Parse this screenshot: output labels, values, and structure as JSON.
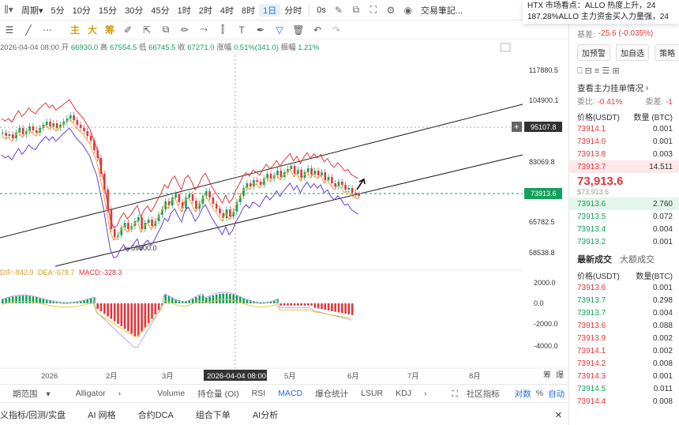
{
  "topbar": {
    "period_label": "周期",
    "timeframes": [
      "5分",
      "10分",
      "15分",
      "30分",
      "45分",
      "1时",
      "2时",
      "4时",
      "8时",
      "1日",
      "分时"
    ],
    "active_timeframe": "1日",
    "interval_0s": "0s",
    "journal_label": "交易筆記...",
    "more_label": "A"
  },
  "notice": {
    "line1": "HTX 市场看点：ALLO 热度上升，24",
    "line2": "187.28%ALLO 主力资金买入力量强，24"
  },
  "drawtools": [
    "主",
    "大",
    "筹"
  ],
  "infoline": {
    "date": "2026-04-04 08:00",
    "open_label": "开",
    "open": "66930.0",
    "high_label": "高",
    "high": "67554.5",
    "low_label": "低",
    "low": "66745.5",
    "close_label": "收",
    "close": "67271.0",
    "change_label": "涨幅",
    "change": "0.51%(341.0)",
    "amp_label": "振幅",
    "amp": "1.21%"
  },
  "yaxis": {
    "ticks": [
      "117880.5",
      "104900.1",
      "83069.8",
      "65782.5",
      "58538.8"
    ],
    "crosshair_value": "95107.8",
    "last_price": "73913.6",
    "low_marker": "59800.0"
  },
  "macd": {
    "dif_label": "DIF:-842.9",
    "dea_label": "DEA:-678.7",
    "macd_label": "MACD:-328.3",
    "ticks": [
      "2000.0",
      "0.0",
      "-2000.0",
      "-4000.0"
    ]
  },
  "xaxis": {
    "labels": [
      "2026",
      "2月",
      "3月",
      "5月",
      "6月",
      "7月",
      "8月"
    ],
    "crosshair_date": "2026-04-04 08:00",
    "corner1": "筹",
    "corner2": "爆"
  },
  "bottomtabs": {
    "range_label": "期范围",
    "items": [
      "Alligator",
      "Volume",
      "持仓量 (OI)",
      "RSI",
      "MACD",
      "爆仓统计",
      "LSUR",
      "KDJ"
    ],
    "active": "MACD",
    "community_label": "社区指标",
    "log_label": "对数",
    "pct_label": "%",
    "auto_label": "自动"
  },
  "bottombar2": {
    "items": [
      "义指标/回测/实盘",
      "AI 网格",
      "合约DCA",
      "组合下单",
      "AI分析"
    ]
  },
  "right": {
    "basis_label": "基差:",
    "basis_value": "-25.6 (-0.035%)",
    "buttons": [
      "加预警",
      "加自选",
      "策略"
    ],
    "depth_link": "查看主力挂单情况",
    "ratio_label": "委比:",
    "ratio_value": "-0.41%",
    "diff_label": "委差:",
    "diff_value": "-1",
    "header_price": "价格(USDT)",
    "header_qty": "数量 (BTC)",
    "asks": [
      {
        "price": "73914.1",
        "qty": "0.001"
      },
      {
        "price": "73914.0",
        "qty": "0.001"
      },
      {
        "price": "73913.8",
        "qty": "0.003"
      },
      {
        "price": "73913.7",
        "qty": "14.511"
      }
    ],
    "mid_price": "73,913.6",
    "mid_sub": "$73,913.6",
    "bids": [
      {
        "price": "73913.6",
        "qty": "2.760"
      },
      {
        "price": "73913.5",
        "qty": "0.072"
      },
      {
        "price": "73913.4",
        "qty": "0.004"
      },
      {
        "price": "73913.2",
        "qty": "0.001"
      }
    ],
    "trades_tab": "最新成交",
    "large_tab": "大额成交",
    "trades_header_price": "价格(USDT)",
    "trades_header_qty": "数量(BTC)",
    "trades": [
      {
        "price": "73913.6",
        "qty": "0.001",
        "side": "sell"
      },
      {
        "price": "73913.7",
        "qty": "0.298",
        "side": "buy"
      },
      {
        "price": "73913.7",
        "qty": "0.004",
        "side": "buy"
      },
      {
        "price": "73913.6",
        "qty": "0.088",
        "side": "sell"
      },
      {
        "price": "73913.9",
        "qty": "0.002",
        "side": "sell"
      },
      {
        "price": "73914.1",
        "qty": "0.002",
        "side": "sell"
      },
      {
        "price": "73914.2",
        "qty": "0.008",
        "side": "sell"
      },
      {
        "price": "73914.3",
        "qty": "0.001",
        "side": "sell"
      },
      {
        "price": "73914.5",
        "qty": "0.011",
        "side": "buy"
      },
      {
        "price": "73914.4",
        "qty": "0.008",
        "side": "sell"
      }
    ]
  },
  "colors": {
    "up": "#12a05c",
    "down": "#e0373b",
    "accent": "#1e6fe8"
  }
}
